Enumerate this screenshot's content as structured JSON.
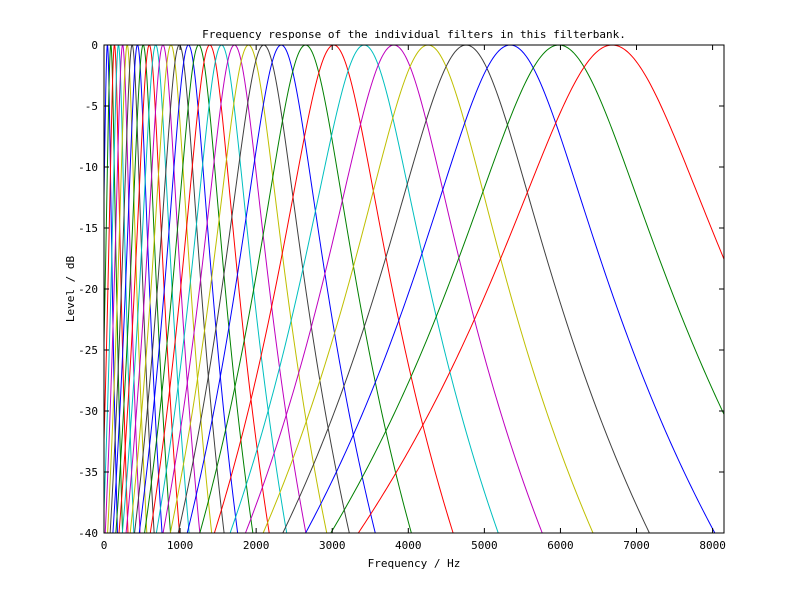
{
  "chart_data": {
    "type": "line",
    "title": "Frequency response of the individual filters in this filterbank.",
    "xlabel": "Frequency / Hz",
    "ylabel": "Level / dB",
    "xlim": [
      0,
      8150
    ],
    "ylim": [
      -40,
      0
    ],
    "x_ticks": [
      0,
      1000,
      2000,
      3000,
      4000,
      5000,
      6000,
      7000,
      8000
    ],
    "x_tick_labels": [
      "0",
      "1000",
      "2000",
      "3000",
      "4000",
      "5000",
      "6000",
      "7000",
      "8000"
    ],
    "y_ticks": [
      0,
      -5,
      -10,
      -15,
      -20,
      -25,
      -30,
      -35,
      -40
    ],
    "y_tick_labels": [
      "0",
      "-5",
      "-10",
      "-15",
      "-20",
      "-25",
      "-30",
      "-35",
      "-40"
    ],
    "grid": false,
    "legend": "none",
    "series_colors": [
      "#0000ff",
      "#008000",
      "#ff0000",
      "#00bfbf",
      "#bf00bf",
      "#bfbf00",
      "#404040"
    ],
    "series": [
      {
        "center_hz": 45,
        "level_at_center_db": 0
      },
      {
        "center_hz": 90,
        "level_at_center_db": 0
      },
      {
        "center_hz": 138,
        "level_at_center_db": 0
      },
      {
        "center_hz": 190,
        "level_at_center_db": 0
      },
      {
        "center_hz": 245,
        "level_at_center_db": 0
      },
      {
        "center_hz": 305,
        "level_at_center_db": 0
      },
      {
        "center_hz": 370,
        "level_at_center_db": 0
      },
      {
        "center_hz": 440,
        "level_at_center_db": 0
      },
      {
        "center_hz": 515,
        "level_at_center_db": 0
      },
      {
        "center_hz": 595,
        "level_at_center_db": 0
      },
      {
        "center_hz": 680,
        "level_at_center_db": 0
      },
      {
        "center_hz": 775,
        "level_at_center_db": 0
      },
      {
        "center_hz": 880,
        "level_at_center_db": 0
      },
      {
        "center_hz": 990,
        "level_at_center_db": 0
      },
      {
        "center_hz": 1110,
        "level_at_center_db": 0
      },
      {
        "center_hz": 1245,
        "level_at_center_db": 0
      },
      {
        "center_hz": 1390,
        "level_at_center_db": 0
      },
      {
        "center_hz": 1545,
        "level_at_center_db": 0
      },
      {
        "center_hz": 1715,
        "level_at_center_db": 0
      },
      {
        "center_hz": 1900,
        "level_at_center_db": 0
      },
      {
        "center_hz": 2100,
        "level_at_center_db": 0
      },
      {
        "center_hz": 2330,
        "level_at_center_db": 0
      },
      {
        "center_hz": 2650,
        "level_at_center_db": 0
      },
      {
        "center_hz": 3020,
        "level_at_center_db": 0
      },
      {
        "center_hz": 3420,
        "level_at_center_db": 0
      },
      {
        "center_hz": 3810,
        "level_at_center_db": 0
      },
      {
        "center_hz": 4260,
        "level_at_center_db": 0
      },
      {
        "center_hz": 4760,
        "level_at_center_db": 0
      },
      {
        "center_hz": 5340,
        "level_at_center_db": 0
      },
      {
        "center_hz": 5980,
        "level_at_center_db": 0
      },
      {
        "center_hz": 6680,
        "level_at_center_db": 0
      }
    ]
  }
}
